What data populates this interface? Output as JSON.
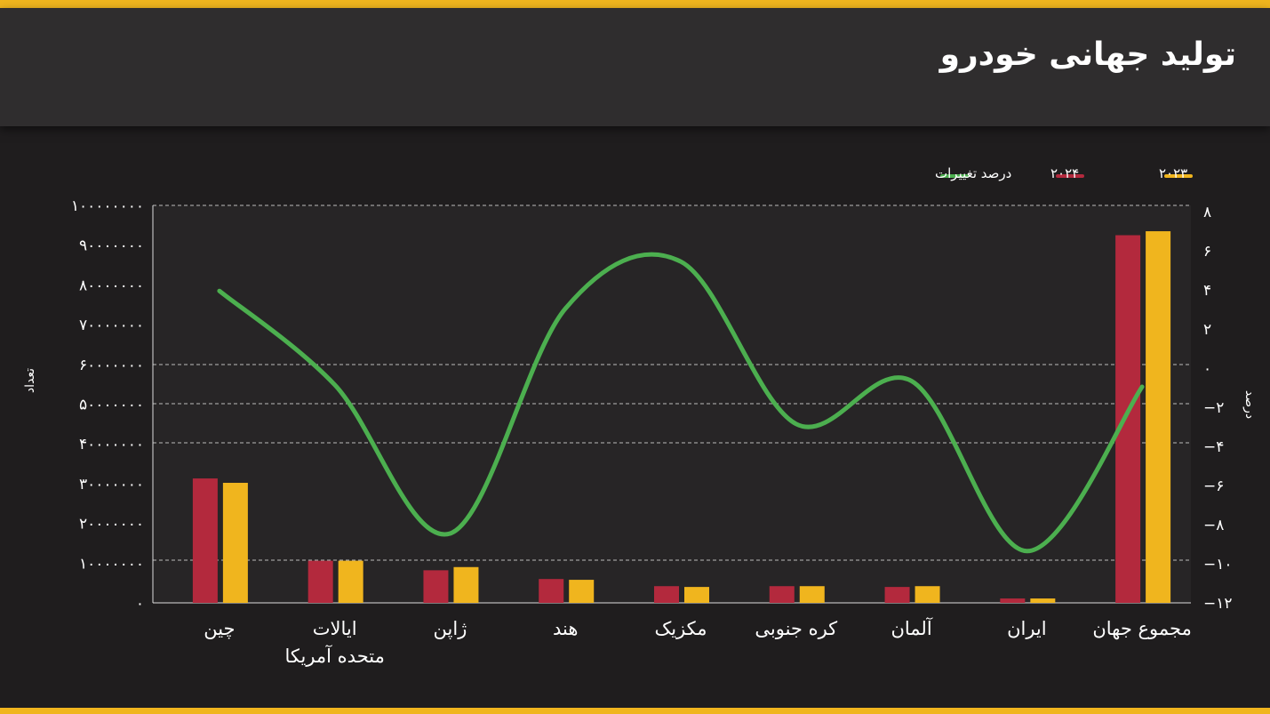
{
  "header": {
    "title": "تولید جهانی خودرو"
  },
  "colors": {
    "accent": "#f0b51e",
    "series_2023": "#f0b51e",
    "series_2024": "#b3293d",
    "line": "#4caf4f",
    "background": "#1f1d1e",
    "header_bg": "#2f2d2e"
  },
  "chart_data": {
    "type": "bar+line",
    "title": "تولید جهانی خودرو",
    "categories": [
      "چین",
      "ایالات متحده آمریکا",
      "ژاپن",
      "هند",
      "مکزیک",
      "کره جنوبی",
      "آلمان",
      "ایران",
      "مجموع جهان"
    ],
    "category_lines": [
      [
        "چین"
      ],
      [
        "ایالات",
        "متحده آمریکا"
      ],
      [
        "ژاپن"
      ],
      [
        "هند"
      ],
      [
        "مکزیک"
      ],
      [
        "کره جنوبی"
      ],
      [
        "آلمان"
      ],
      [
        "ایران"
      ],
      [
        "مجموع جهان"
      ]
    ],
    "series": [
      {
        "name": "۲۰۲۴",
        "type": "bar",
        "axis": "left",
        "color": "#b3293d",
        "values": [
          31300000,
          10600000,
          8200000,
          6000000,
          4200000,
          4200000,
          4000000,
          1100000,
          92500000
        ]
      },
      {
        "name": "۲۰۲۳",
        "type": "bar",
        "axis": "left",
        "color": "#f0b51e",
        "values": [
          30200000,
          10600000,
          9000000,
          5800000,
          4000000,
          4200000,
          4200000,
          1100000,
          93500000
        ]
      },
      {
        "name": "درصد تغییرات",
        "type": "line",
        "axis": "right",
        "color": "#4caf4f",
        "values": [
          3.9,
          -0.9,
          -8.5,
          3.0,
          5.4,
          -2.9,
          -0.7,
          -9.4,
          -1.0
        ]
      }
    ],
    "legend": {
      "placement": "top-right",
      "order": [
        "۲۰۲۳",
        "۲۰۲۴",
        "درصد تغییرات"
      ]
    },
    "ylabel": "تعداد",
    "ylabel_right": "درصد",
    "ylim": [
      0,
      100000000
    ],
    "yticks": [
      0,
      10000000,
      20000000,
      30000000,
      40000000,
      50000000,
      60000000,
      70000000,
      80000000,
      90000000,
      100000000
    ],
    "ytick_labels": [
      "۰",
      "۱۰۰۰۰۰۰۰",
      "۲۰۰۰۰۰۰۰",
      "۳۰۰۰۰۰۰۰",
      "۴۰۰۰۰۰۰۰",
      "۵۰۰۰۰۰۰۰",
      "۶۰۰۰۰۰۰۰",
      "۷۰۰۰۰۰۰۰",
      "۸۰۰۰۰۰۰۰",
      "۹۰۰۰۰۰۰۰",
      "۱۰۰۰۰۰۰۰۰"
    ],
    "ylim_right": [
      -12,
      8
    ],
    "yticks_right": [
      -12,
      -10,
      -8,
      -6,
      -4,
      -2,
      0,
      2,
      4,
      6,
      8
    ],
    "ytick_labels_right": [
      "−۱۲",
      "−۱۰",
      "−۸",
      "−۶",
      "−۴",
      "−۲",
      "۰",
      "۲",
      "۴",
      "۶",
      "۸"
    ],
    "grid_right_values": [
      8,
      0,
      -2,
      -4,
      -10
    ],
    "grid": "dashed, partial"
  }
}
